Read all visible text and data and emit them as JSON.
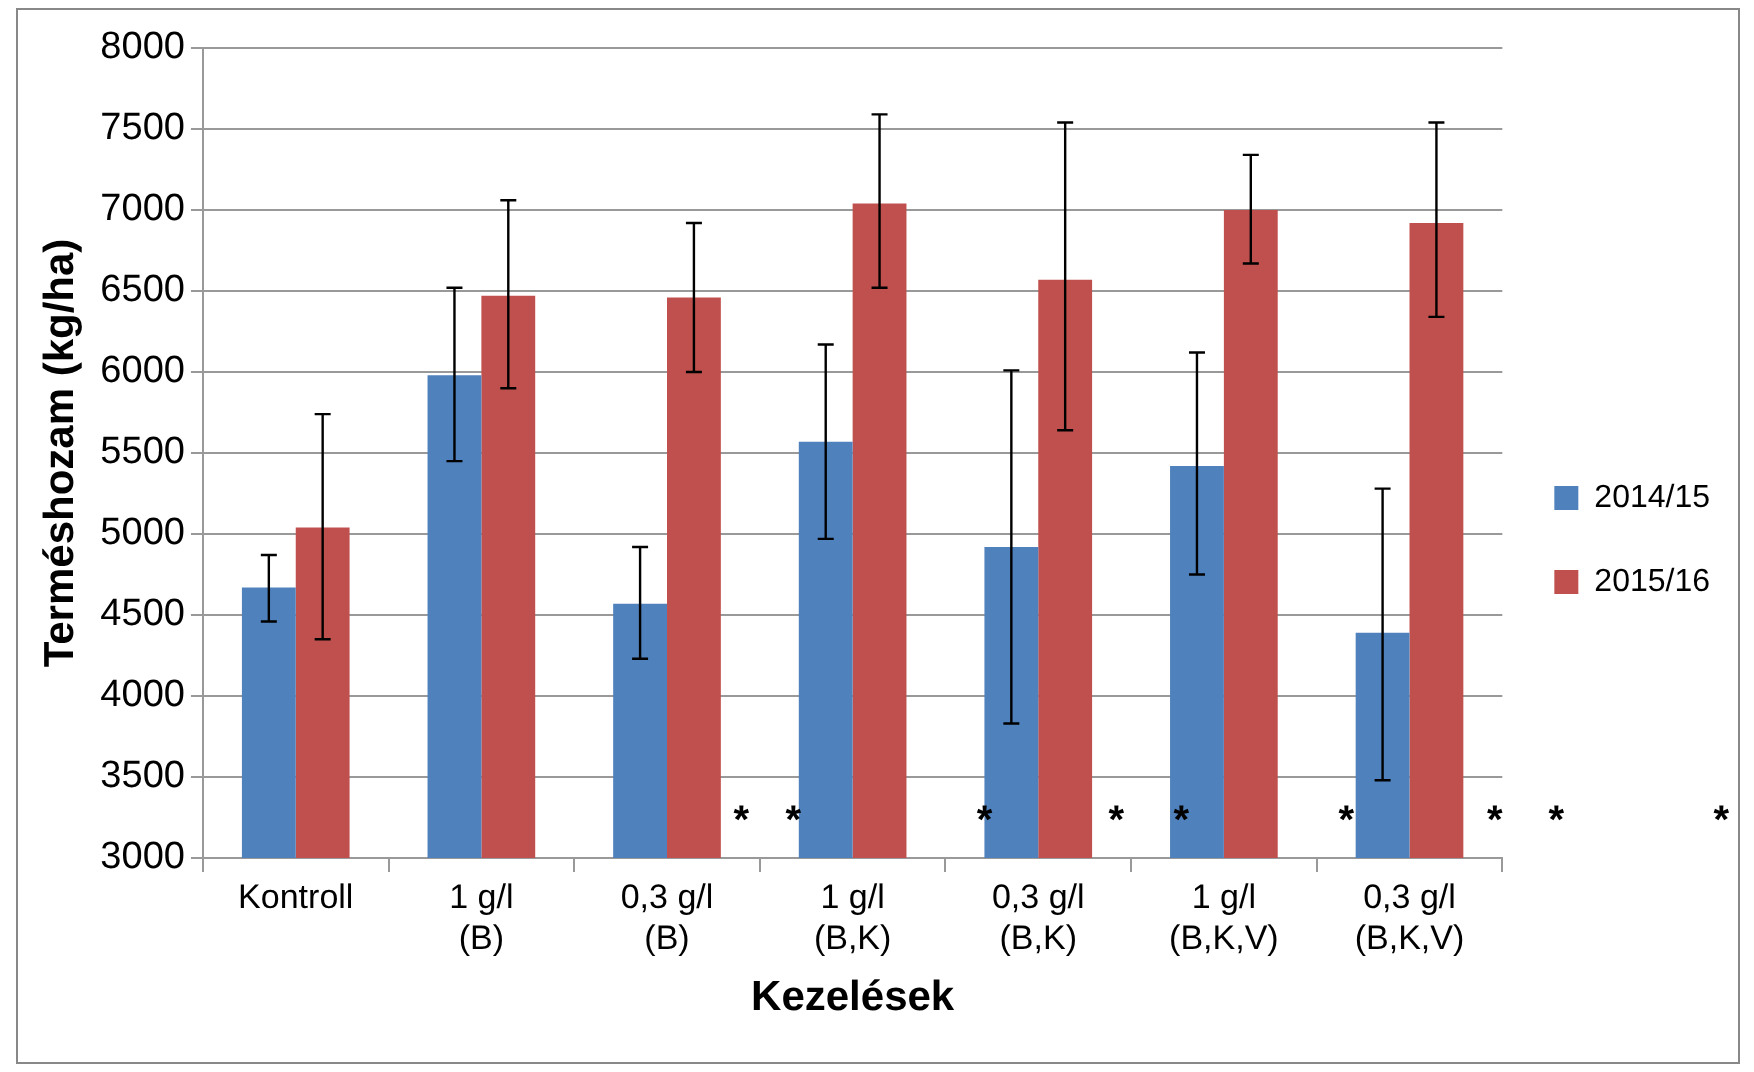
{
  "chart_data": {
    "type": "bar",
    "xlabel": "Kezelések",
    "ylabel": "Terméshozam (kg/ha)",
    "categories": [
      "Kontroll",
      "1 g/l\n(B)",
      "0,3 g/l\n(B)",
      "1 g/l\n(B,K)",
      "0,3 g/l\n(B,K)",
      "1 g/l\n(B,K,V)",
      "0,3 g/l\n(B,K,V)"
    ],
    "series": [
      {
        "name": "2014/15",
        "color": "#4f81bd",
        "values": [
          4670,
          5980,
          4570,
          5570,
          4920,
          5420,
          4390
        ],
        "errors": [
          [
            4460,
            4870
          ],
          [
            5450,
            6520
          ],
          [
            4230,
            4920
          ],
          [
            4970,
            6170
          ],
          [
            3830,
            6010
          ],
          [
            4750,
            6120
          ],
          [
            3480,
            5280
          ]
        ]
      },
      {
        "name": "2015/16",
        "color": "#c0504d",
        "values": [
          5040,
          6470,
          6460,
          7040,
          6570,
          7000,
          6920
        ],
        "errors": [
          [
            4350,
            5740
          ],
          [
            5900,
            7060
          ],
          [
            6000,
            6920
          ],
          [
            6520,
            7590
          ],
          [
            5640,
            7540
          ],
          [
            6670,
            7340
          ],
          [
            6340,
            7540
          ]
        ]
      }
    ],
    "ylim": [
      3000,
      8000
    ],
    "yticks": [
      3000,
      3500,
      4000,
      4500,
      5000,
      5500,
      6000,
      6500,
      7000,
      7500,
      8000
    ],
    "grid": "y",
    "legend": "right",
    "annotations": [
      "*",
      "*",
      "*",
      "*",
      "*",
      "*",
      "*",
      "*",
      "*"
    ]
  }
}
